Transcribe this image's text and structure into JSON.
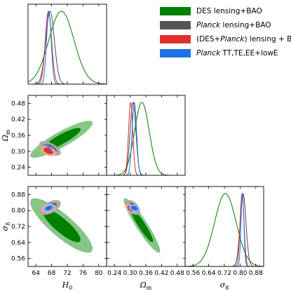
{
  "chart_data": {
    "type": "corner",
    "params": [
      {
        "key": "H0",
        "label_main": "H",
        "label_sub": "0",
        "range": [
          62,
          82
        ],
        "ticks": [
          64,
          68,
          72,
          76,
          80
        ],
        "tick_labels": [
          "64",
          "68",
          "72",
          "76",
          "80"
        ]
      },
      {
        "key": "Om",
        "label_main": "Ω",
        "label_sub": "m",
        "range": [
          0.21,
          0.51
        ],
        "ticks": [
          0.24,
          0.3,
          0.36,
          0.42,
          0.48
        ],
        "tick_labels": [
          "0.24",
          "0.30",
          "0.36",
          "0.42",
          "0.48"
        ]
      },
      {
        "key": "s8",
        "label_main": "σ",
        "label_sub": "8",
        "range": [
          0.52,
          0.92
        ],
        "ticks": [
          0.56,
          0.64,
          0.72,
          0.8,
          0.88
        ],
        "tick_labels": [
          "0.56",
          "0.64",
          "0.72",
          "0.80",
          "0.88"
        ]
      }
    ],
    "series": [
      {
        "name": "DES lensing+BAO",
        "name_parts": [
          [
            "DES lensing+BAO",
            false
          ]
        ],
        "color": "#007f00",
        "fill_inner": "#008000",
        "fill_outer": "#86c686",
        "mean": {
          "H0": 70.5,
          "Om": 0.345,
          "s8": 0.725
        },
        "sigma": {
          "H0": 3.2,
          "Om": 0.028,
          "s8": 0.055
        },
        "rho": {
          "H0_Om": 0.88,
          "H0_s8": -0.85,
          "Om_s8": -0.93
        }
      },
      {
        "name": "Planck lensing+BAO",
        "name_parts": [
          [
            "Planck",
            true
          ],
          [
            " lensing+BAO",
            false
          ]
        ],
        "color": "#4d4d4d",
        "fill_inner": "#555555",
        "fill_outer": "#a9a9a9",
        "mean": {
          "H0": 67.6,
          "Om": 0.311,
          "s8": 0.815
        },
        "sigma": {
          "H0": 1.1,
          "Om": 0.011,
          "s8": 0.015
        },
        "rho": {
          "H0_Om": -0.6,
          "H0_s8": 0.55,
          "Om_s8": -0.5
        }
      },
      {
        "name": "(DES+Planck) lensing + BAO",
        "name_parts": [
          [
            "(DES+",
            false
          ],
          [
            "Planck",
            true
          ],
          [
            ") lensing + BAO",
            false
          ]
        ],
        "color": "#d42a2a",
        "fill_inner": "#e0302c",
        "fill_outer": "#f0a39a",
        "mean": {
          "H0": 67.2,
          "Om": 0.302,
          "s8": 0.81
        },
        "sigma": {
          "H0": 0.8,
          "Om": 0.008,
          "s8": 0.01
        },
        "rho": {
          "H0_Om": -0.4,
          "H0_s8": 0.2,
          "Om_s8": -0.45
        }
      },
      {
        "name": "Planck TT,TE,EE+lowE",
        "name_parts": [
          [
            "Planck",
            true
          ],
          [
            " TT,TE,EE+lowE",
            false
          ]
        ],
        "color": "#1e6fe0",
        "fill_inner": "#1f72e6",
        "fill_outer": "#88b6f2",
        "mean": {
          "H0": 67.3,
          "Om": 0.316,
          "s8": 0.812
        },
        "sigma": {
          "H0": 0.6,
          "Om": 0.0085,
          "s8": 0.0074
        },
        "rho": {
          "H0_Om": -0.97,
          "H0_s8": 0.4,
          "Om_s8": -0.3
        }
      }
    ],
    "legend_position": "top-right",
    "grid": false
  }
}
